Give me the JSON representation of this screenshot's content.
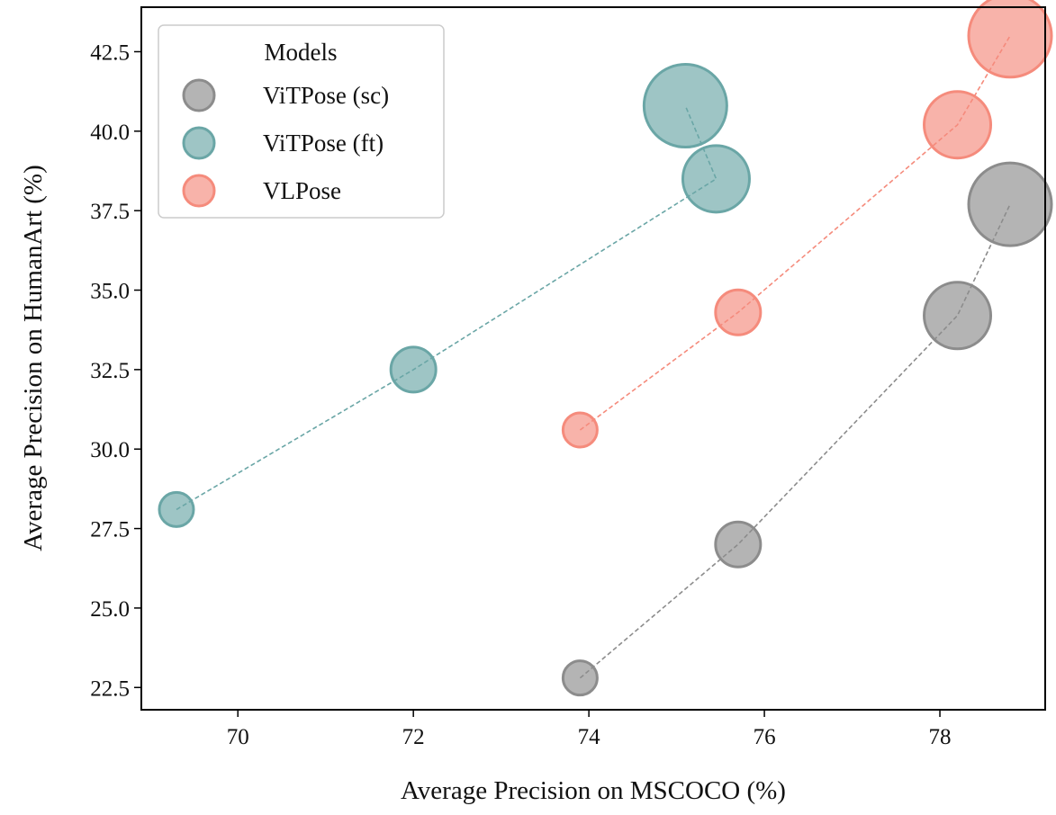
{
  "chart_data": {
    "type": "scatter",
    "xlabel": "Average Precision on MSCOCO (%)",
    "ylabel": "Average Precision on HumanArt (%)",
    "xlim": [
      68.9,
      79.2
    ],
    "ylim": [
      21.8,
      43.9
    ],
    "xticks": [
      70,
      72,
      74,
      76,
      78
    ],
    "xtick_labels": [
      "70",
      "72",
      "74",
      "76",
      "78"
    ],
    "yticks": [
      22.5,
      25.0,
      27.5,
      30.0,
      32.5,
      35.0,
      37.5,
      40.0,
      42.5
    ],
    "ytick_labels": [
      "22.5",
      "25.0",
      "27.5",
      "30.0",
      "32.5",
      "35.0",
      "37.5",
      "40.0",
      "42.5"
    ],
    "grid": false,
    "legend": {
      "title": "Models",
      "placement": "top-left"
    },
    "marker_size_note_visible": false,
    "series": [
      {
        "name": "ViTPose (sc)",
        "color": "#8c8c8c",
        "points": [
          {
            "x": 73.9,
            "y": 22.8,
            "size": 1
          },
          {
            "x": 75.7,
            "y": 27.0,
            "size": 2
          },
          {
            "x": 78.2,
            "y": 34.2,
            "size": 3
          },
          {
            "x": 78.8,
            "y": 37.7,
            "size": 4
          }
        ]
      },
      {
        "name": "ViTPose (ft)",
        "color": "#6aa6a6",
        "points": [
          {
            "x": 69.3,
            "y": 28.1,
            "size": 1
          },
          {
            "x": 72.0,
            "y": 32.5,
            "size": 2
          },
          {
            "x": 75.45,
            "y": 38.5,
            "size": 3
          },
          {
            "x": 75.1,
            "y": 40.8,
            "size": 4
          }
        ]
      },
      {
        "name": "VLPose",
        "color": "#f58b7c",
        "points": [
          {
            "x": 73.9,
            "y": 30.6,
            "size": 1
          },
          {
            "x": 75.7,
            "y": 34.3,
            "size": 2
          },
          {
            "x": 78.2,
            "y": 40.2,
            "size": 3
          },
          {
            "x": 78.8,
            "y": 43.0,
            "size": 4
          }
        ]
      }
    ]
  }
}
